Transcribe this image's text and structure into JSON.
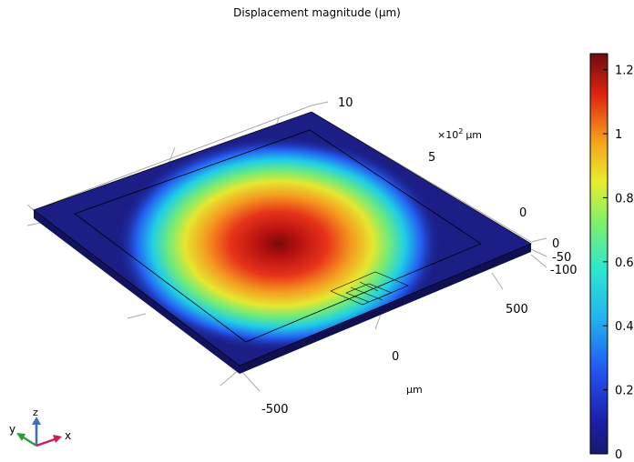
{
  "title": "Displacement magnitude (µm)",
  "colorbar": {
    "ticks": [
      "1.2",
      "1",
      "0.8",
      "0.6",
      "0.4",
      "0.2",
      "0"
    ],
    "values": [
      1.2,
      1.0,
      0.8,
      0.6,
      0.4,
      0.2,
      0.0
    ],
    "range": [
      0,
      1.25
    ]
  },
  "axes": {
    "y_ticks": [
      "10",
      "5",
      "0"
    ],
    "y_multiplier": "×10",
    "y_exponent": "2",
    "y_unit": "µm",
    "z_ticks": [
      "0",
      "-50",
      "-100"
    ],
    "x_ticks": [
      "500",
      "0",
      "-500"
    ],
    "x_unit": "µm"
  },
  "triad": {
    "z": "z",
    "y": "y",
    "x": "x"
  },
  "colors": {
    "plate_low": "#1a1a7a",
    "plate_high": "#8b0000",
    "triad_z": "#3b6fb6",
    "triad_y": "#2e9b3a",
    "triad_x": "#d11a5a"
  }
}
